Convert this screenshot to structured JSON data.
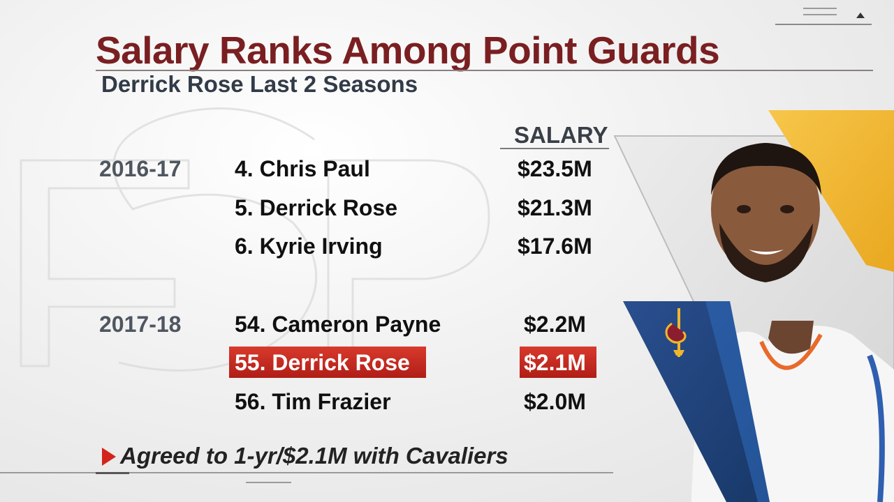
{
  "header": {
    "title": "Salary Ranks Among Point Guards",
    "subtitle": "Derrick Rose Last 2 Seasons"
  },
  "table": {
    "column_header": "SALARY",
    "groups": [
      {
        "season": "2016-17",
        "rows": [
          {
            "player": "4. Chris Paul",
            "salary": "$23.5M",
            "highlight": false
          },
          {
            "player": "5. Derrick Rose",
            "salary": "$21.3M",
            "highlight": false
          },
          {
            "player": "6. Kyrie Irving",
            "salary": "$17.6M",
            "highlight": false
          }
        ]
      },
      {
        "season": "2017-18",
        "rows": [
          {
            "player": "54. Cameron Payne",
            "salary": "$2.2M",
            "highlight": false
          },
          {
            "player": "55. Derrick Rose",
            "salary": "$2.1M",
            "highlight": true
          },
          {
            "player": "56. Tim Frazier",
            "salary": "$2.0M",
            "highlight": false
          }
        ]
      }
    ]
  },
  "footnote": "Agreed to 1-yr/$2.1M with Cavaliers",
  "colors": {
    "title": "#7a1f21",
    "highlight": "#c62b21",
    "arrow": "#d3241c",
    "team_navy": "#1f3f7a",
    "team_gold": "#f0b62b"
  },
  "icons": {
    "logo": "cavaliers-logo-icon",
    "arrow": "play-arrow-icon",
    "menu": "menu-lines-icon",
    "corner": "triangle-up-icon"
  }
}
